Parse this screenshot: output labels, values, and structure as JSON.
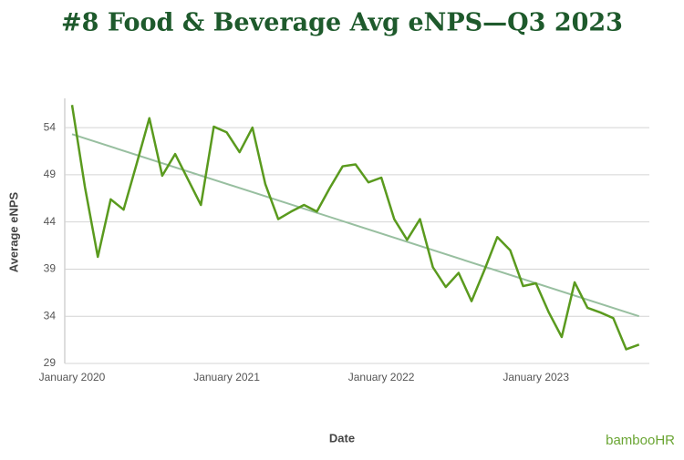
{
  "chart_data": {
    "type": "line",
    "title": "#8 Food & Beverage Avg eNPS—Q3 2023",
    "x_label": "Date",
    "y_label": "Average eNPS",
    "logo": "bambooHR",
    "x": [
      "2020-01",
      "2020-02",
      "2020-03",
      "2020-04",
      "2020-05",
      "2020-06",
      "2020-07",
      "2020-08",
      "2020-09",
      "2020-10",
      "2020-11",
      "2020-12",
      "2021-01",
      "2021-02",
      "2021-03",
      "2021-04",
      "2021-05",
      "2021-06",
      "2021-07",
      "2021-08",
      "2021-09",
      "2021-10",
      "2021-11",
      "2021-12",
      "2022-01",
      "2022-02",
      "2022-03",
      "2022-04",
      "2022-05",
      "2022-06",
      "2022-07",
      "2022-08",
      "2022-09",
      "2022-10",
      "2022-11",
      "2022-12",
      "2023-01",
      "2023-02",
      "2023-03",
      "2023-04",
      "2023-05",
      "2023-06",
      "2023-07",
      "2023-08",
      "2023-09"
    ],
    "series": [
      {
        "color": "#5a9a1e",
        "values": [
          56.4,
          47.7,
          40.3,
          46.4,
          45.3,
          50.1,
          55.0,
          48.9,
          51.2,
          48.5,
          45.8,
          54.1,
          53.5,
          51.4,
          54.0,
          48.0,
          44.3,
          45.1,
          45.8,
          45.1,
          47.6,
          49.9,
          50.1,
          48.2,
          48.7,
          44.3,
          42.1,
          44.3,
          39.2,
          37.1,
          38.6,
          35.6,
          38.9,
          42.4,
          41.0,
          37.2,
          37.5,
          34.4,
          31.8,
          37.6,
          34.9,
          34.4,
          33.8,
          30.5,
          31.0
        ]
      }
    ],
    "trend": {
      "color": "#98bfa0",
      "x": [
        "2020-01",
        "2023-09"
      ],
      "values": [
        53.3,
        34.0
      ]
    },
    "xticks": [
      {
        "value": "2020-01",
        "label": "January 2020"
      },
      {
        "value": "2021-01",
        "label": "January 2021"
      },
      {
        "value": "2022-01",
        "label": "January 2022"
      },
      {
        "value": "2023-01",
        "label": "January 2023"
      }
    ],
    "ylim": [
      29,
      57.1
    ],
    "yticks": [
      29,
      34,
      39,
      44,
      49,
      54
    ],
    "grid": true
  }
}
